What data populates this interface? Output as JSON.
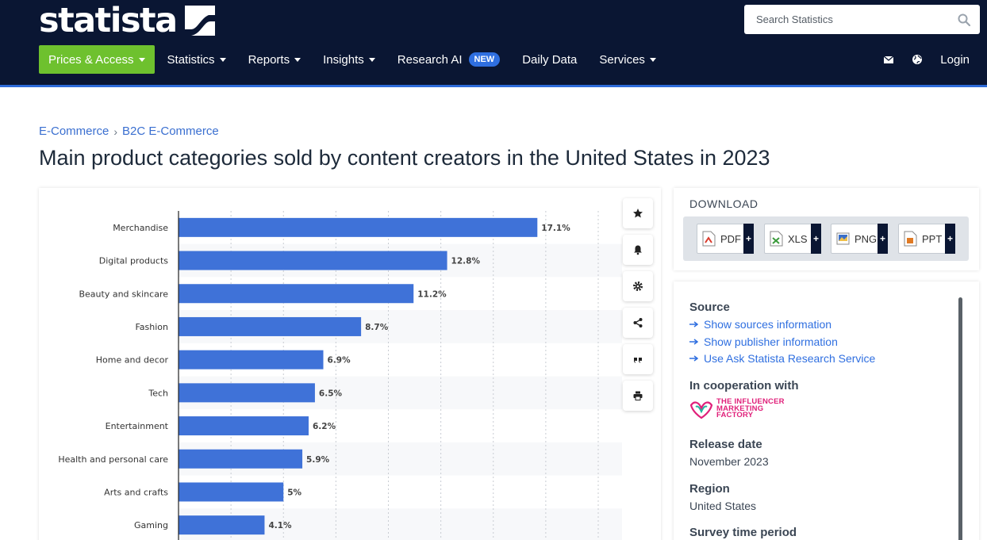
{
  "header": {
    "logo_text": "statista",
    "search_placeholder": "Search Statistics",
    "nav": [
      {
        "label": "Prices & Access"
      },
      {
        "label": "Statistics"
      },
      {
        "label": "Reports"
      },
      {
        "label": "Insights"
      },
      {
        "label": "Research AI",
        "badge": "NEW"
      },
      {
        "label": "Daily Data"
      },
      {
        "label": "Services"
      }
    ],
    "login_label": "Login",
    "colors": {
      "bg": "#0a1633",
      "primary": "#6ec12e",
      "badge": "#2f6fe0"
    }
  },
  "breadcrumb": [
    "E-Commerce",
    "B2C E-Commerce"
  ],
  "page_title": "Main product categories sold by content creators in the United States in 2023",
  "chart_data": {
    "type": "bar",
    "orientation": "horizontal",
    "categories": [
      "Merchandise",
      "Digital products",
      "Beauty and skincare",
      "Fashion",
      "Home and decor",
      "Tech",
      "Entertainment",
      "Health and personal care",
      "Arts and crafts",
      "Gaming"
    ],
    "values": [
      17.1,
      12.8,
      11.2,
      8.7,
      6.9,
      6.5,
      6.2,
      5.9,
      5,
      4.1
    ],
    "value_labels": [
      "17.1%",
      "12.8%",
      "11.2%",
      "8.7%",
      "6.9%",
      "6.5%",
      "6.2%",
      "5.9%",
      "5%",
      "4.1%"
    ],
    "xlim": [
      0,
      20
    ],
    "grid": true,
    "bar_color": "#3f72d8"
  },
  "download": {
    "title": "DOWNLOAD",
    "buttons": [
      {
        "label": "PDF",
        "color": "#d93a2b"
      },
      {
        "label": "XLS",
        "color": "#3b9a3b"
      },
      {
        "label": "PNG",
        "color": "#3a6fc9"
      },
      {
        "label": "PPT",
        "color": "#e07a24"
      }
    ],
    "plus": "+"
  },
  "info": {
    "source_heading": "Source",
    "source_links": [
      "Show sources information",
      "Show publisher information",
      "Use Ask Statista Research Service"
    ],
    "coop_heading": "In cooperation with",
    "coop_logo_text": "THE INFLUENCER MARKETING FACTORY",
    "release_heading": "Release date",
    "release_value": "November 2023",
    "region_heading": "Region",
    "region_value": "United States",
    "survey_heading": "Survey time period"
  }
}
